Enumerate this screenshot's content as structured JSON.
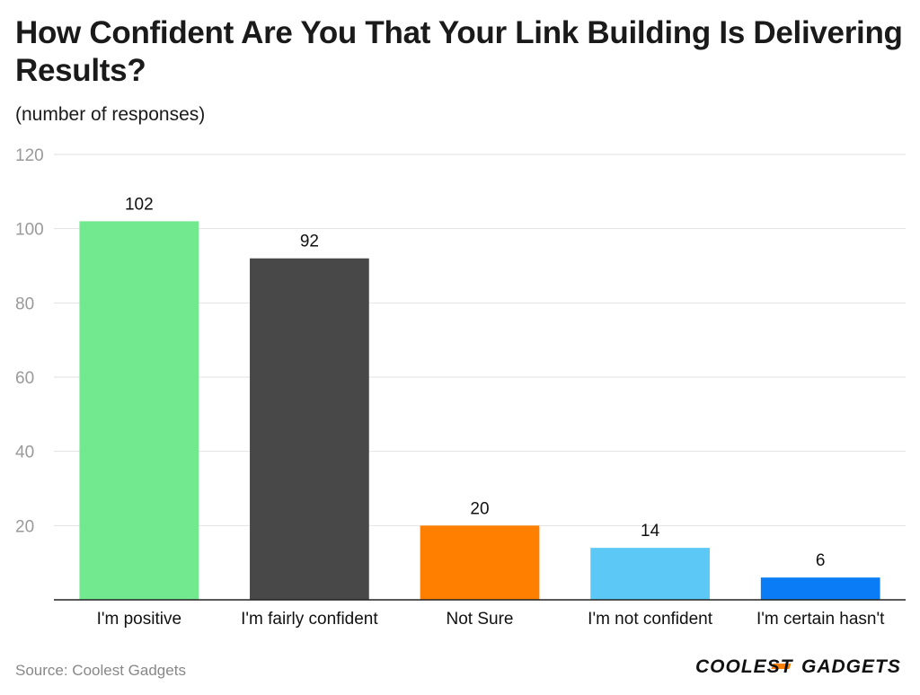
{
  "title": "How Confident Are You That Your Link Building Is Delivering Results?",
  "subtitle": "(number of responses)",
  "source": "Source: Coolest Gadgets",
  "logo_text": "COOLEST-GADGETS",
  "chart_data": {
    "type": "bar",
    "title": "How Confident Are You That Your Link Building Is Delivering Results?",
    "subtitle": "(number of responses)",
    "xlabel": "",
    "ylabel": "",
    "categories": [
      "I'm positive",
      "I'm fairly confident",
      "Not Sure",
      "I'm not confident",
      "I'm certain hasn't"
    ],
    "values": [
      102,
      92,
      20,
      14,
      6
    ],
    "colors": [
      "#72e98f",
      "#484848",
      "#ff7f00",
      "#5bc8f5",
      "#0a7cf5"
    ],
    "ylim": [
      0,
      120
    ],
    "yticks": [
      20,
      40,
      60,
      80,
      100,
      120
    ],
    "grid": true,
    "legend": "none",
    "data_labels": true
  }
}
